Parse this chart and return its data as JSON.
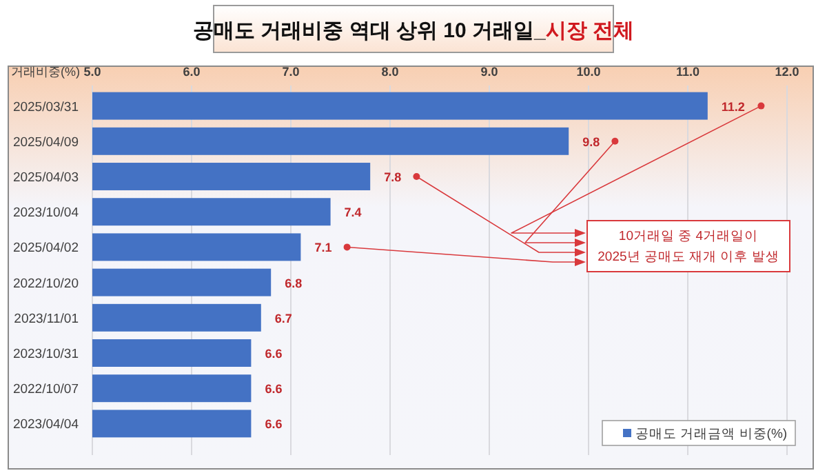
{
  "chart_data": {
    "type": "bar",
    "orientation": "horizontal",
    "title": "공매도 거래비중 역대 상위 10 거래일_시장 전체",
    "xlabel": "거래비중(%)",
    "categories": [
      "2025/03/31",
      "2025/04/09",
      "2025/04/03",
      "2023/10/04",
      "2025/04/02",
      "2022/10/20",
      "2023/11/01",
      "2023/10/31",
      "2022/10/07",
      "2023/04/04"
    ],
    "series": [
      {
        "name": "공매도 거래금액 비중(%)",
        "color": "#4472c4",
        "values": [
          11.2,
          9.8,
          7.8,
          7.4,
          7.1,
          6.8,
          6.7,
          6.6,
          6.6,
          6.6
        ]
      }
    ],
    "xlim": [
      5,
      12
    ],
    "xticks": [
      {
        "value": 5,
        "label": "5.0"
      },
      {
        "value": 6,
        "label": "6.0"
      },
      {
        "value": 7,
        "label": "7.0"
      },
      {
        "value": 8,
        "label": "8.0"
      },
      {
        "value": 9,
        "label": "9.0"
      },
      {
        "value": 10,
        "label": "10.0"
      },
      {
        "value": 11,
        "label": "11.0"
      },
      {
        "value": 12,
        "label": "12.0"
      }
    ],
    "grid": "x",
    "legend": "bottom right",
    "data_labels": true,
    "annotations": [
      "10거래일 중 4거래일이\n2025년 공매도 재개 이후 발생"
    ]
  }
}
